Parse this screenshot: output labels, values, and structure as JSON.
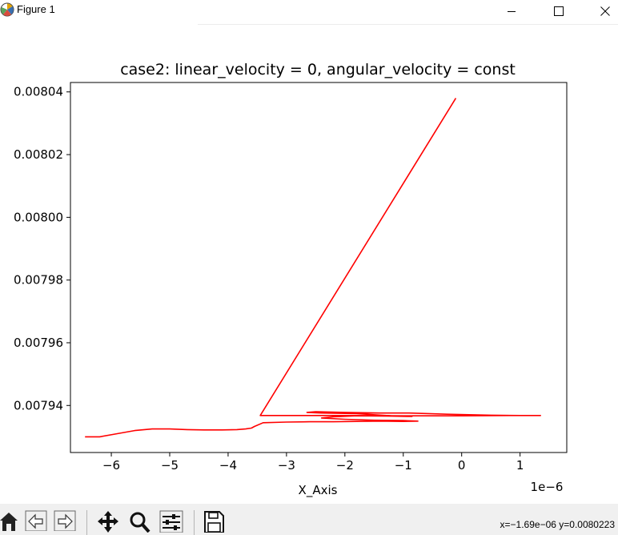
{
  "window": {
    "title": "Figure 1",
    "controls": [
      "minimize",
      "maximize",
      "close"
    ]
  },
  "toolbar": {
    "tools": [
      "home-icon",
      "back-arrow-icon",
      "forward-arrow-icon",
      "pan-icon",
      "zoom-icon",
      "configure-subplots-icon",
      "save-icon"
    ],
    "coords": "x=−1.69e−06 y=0.0080223"
  },
  "chart_data": {
    "type": "line",
    "title": "case2: linear_velocity = 0, angular_velocity = const",
    "xlabel": "X_Axis",
    "ylabel": "",
    "x_offset_label": "1e−6",
    "xlim": [
      -6.7,
      1.8
    ],
    "ylim": [
      0.007925,
      0.008043
    ],
    "x_ticks": [
      -6,
      -5,
      -4,
      -3,
      -2,
      -1,
      0,
      1
    ],
    "x_tick_labels": [
      "−6",
      "−5",
      "−4",
      "−3",
      "−2",
      "−1",
      "0",
      "1"
    ],
    "y_ticks": [
      0.00794,
      0.00796,
      0.00798,
      0.008,
      0.00802,
      0.00804
    ],
    "y_tick_labels": [
      "0.00794",
      "0.00796",
      "0.00798",
      "0.00800",
      "0.00802",
      "0.00804"
    ],
    "grid": false,
    "color": "#ff0000",
    "series": [
      {
        "x": [
          -6.45,
          -6.2,
          -5.9,
          -5.6,
          -5.3,
          -5.0,
          -4.7,
          -4.4,
          -4.1,
          -3.85,
          -3.7,
          -3.6,
          -3.55,
          -3.4,
          -3.0,
          -2.6,
          -2.2,
          -1.8,
          -1.4,
          -1.0,
          -0.75,
          -1.0,
          -1.5,
          -2.0,
          -2.4,
          -2.2,
          -1.8,
          -1.2,
          -0.85,
          -1.2,
          -1.8,
          -2.4,
          -2.65,
          -2.5,
          -2.0,
          -1.4,
          -0.9,
          -0.25,
          0.5,
          1.0,
          1.35,
          1.0,
          0.0,
          -1.0,
          -2.0,
          -2.8,
          -3.2,
          -3.45,
          -0.1
        ],
        "y": [
          0.00793,
          0.00793,
          0.007931,
          0.007932,
          0.0079325,
          0.0079325,
          0.0079323,
          0.0079322,
          0.0079322,
          0.0079323,
          0.0079325,
          0.0079328,
          0.0079333,
          0.0079345,
          0.0079347,
          0.0079348,
          0.0079348,
          0.0079349,
          0.007935,
          0.0079349,
          0.007935,
          0.0079352,
          0.0079353,
          0.0079356,
          0.007936,
          0.0079364,
          0.0079367,
          0.0079366,
          0.0079365,
          0.0079367,
          0.0079374,
          0.0079376,
          0.0079378,
          0.007938,
          0.0079378,
          0.0079376,
          0.0079376,
          0.0079372,
          0.0079369,
          0.0079368,
          0.0079368,
          0.0079368,
          0.0079367,
          0.0079367,
          0.0079368,
          0.0079368,
          0.0079368,
          0.0079368,
          0.008038
        ]
      }
    ]
  }
}
